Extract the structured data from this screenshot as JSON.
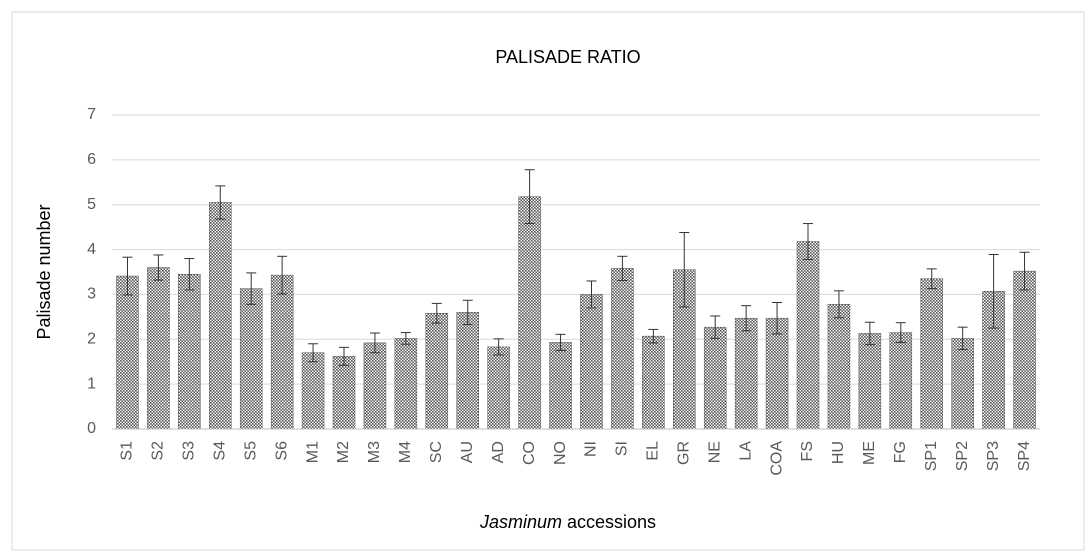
{
  "chart_data": {
    "type": "bar",
    "title": "PALISADE RATIO",
    "ylabel": "Palisade number",
    "xlabel_parts": [
      "Jasminum",
      "accessions"
    ],
    "categories": [
      "S1",
      "S2",
      "S3",
      "S4",
      "S5",
      "S6",
      "M1",
      "M2",
      "M3",
      "M4",
      "SC",
      "AU",
      "AD",
      "CO",
      "NO",
      "NI",
      "SI",
      "EL",
      "GR",
      "NE",
      "LA",
      "COA",
      "FS",
      "HU",
      "ME",
      "FG",
      "SP1",
      "SP2",
      "SP3",
      "SP4"
    ],
    "values": [
      3.41,
      3.6,
      3.45,
      5.05,
      3.13,
      3.43,
      1.7,
      1.62,
      1.92,
      2.02,
      2.58,
      2.6,
      1.83,
      5.18,
      1.93,
      3.0,
      3.58,
      2.07,
      3.55,
      2.27,
      2.47,
      2.47,
      4.18,
      2.78,
      2.13,
      2.15,
      3.35,
      2.02,
      3.07,
      3.52
    ],
    "errors": [
      0.42,
      0.28,
      0.35,
      0.37,
      0.35,
      0.42,
      0.2,
      0.2,
      0.22,
      0.13,
      0.22,
      0.27,
      0.18,
      0.6,
      0.18,
      0.3,
      0.27,
      0.15,
      0.83,
      0.25,
      0.28,
      0.35,
      0.4,
      0.3,
      0.25,
      0.22,
      0.22,
      0.25,
      0.82,
      0.42
    ],
    "color": "#555555",
    "ylim": [
      0,
      7
    ],
    "yticks": [
      0,
      1,
      2,
      3,
      4,
      5,
      6,
      7
    ],
    "grid": true
  }
}
